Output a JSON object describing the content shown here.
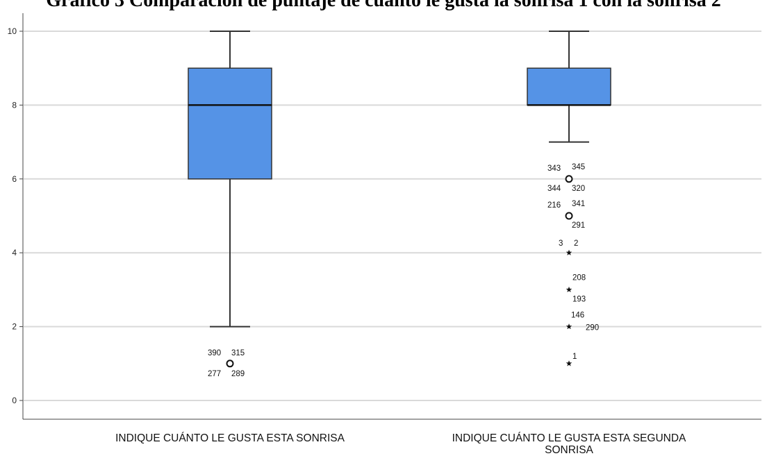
{
  "chart_data": {
    "type": "boxplot",
    "title": "Gráfico 3 Comparación de puntaje de cuánto le gusta la sonrisa 1 con la sonrisa 2",
    "ylim": [
      0,
      10
    ],
    "yticks": [
      "0",
      "2",
      "4",
      "6",
      "8",
      "10"
    ],
    "grid": true,
    "box_color": "#5593e6",
    "categories": [
      {
        "label_lines": [
          "INDIQUE CUÁNTO LE GUSTA ESTA SONRISA"
        ],
        "min": 2,
        "q1": 6,
        "median": 8,
        "q3": 9,
        "max": 10,
        "outliers": [
          {
            "value": 1,
            "marker": "circle",
            "labels": [
              "390",
              "315",
              "277",
              "289"
            ]
          }
        ]
      },
      {
        "label_lines": [
          "INDIQUE CUÁNTO LE GUSTA ESTA  SEGUNDA",
          "SONRISA"
        ],
        "min": 7,
        "q1": 8,
        "median": 8,
        "q3": 9,
        "max": 10,
        "outliers": [
          {
            "value": 6,
            "marker": "circle",
            "labels": [
              "343",
              "345",
              "344",
              "320"
            ]
          },
          {
            "value": 5,
            "marker": "circle",
            "labels": [
              "216",
              "341",
              "291"
            ]
          },
          {
            "value": 4,
            "marker": "star",
            "labels": [
              "3",
              "2"
            ]
          },
          {
            "value": 3,
            "marker": "star",
            "labels": [
              "208",
              "193"
            ]
          },
          {
            "value": 2,
            "marker": "star",
            "labels": [
              "146",
              "290"
            ]
          },
          {
            "value": 1,
            "marker": "star",
            "labels": [
              "1"
            ]
          }
        ]
      }
    ]
  }
}
